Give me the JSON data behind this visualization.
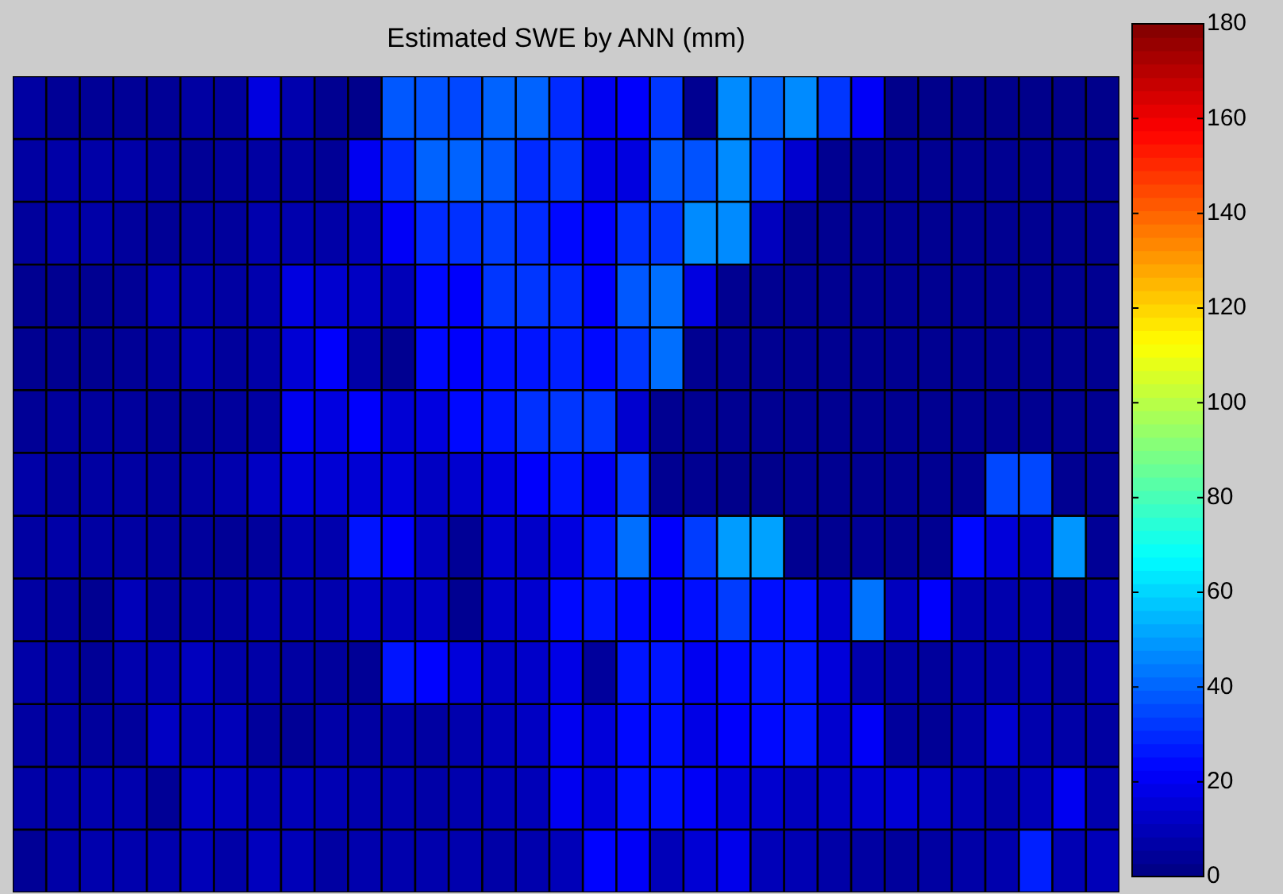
{
  "chart_data": {
    "type": "heatmap",
    "title": "Estimated SWE by ANN (mm)",
    "categories": [
      null,
      null,
      null,
      null,
      null,
      null,
      null,
      null,
      null,
      null,
      null,
      null,
      null,
      null,
      null,
      null,
      null,
      null,
      null,
      null,
      null,
      null,
      null,
      null,
      null,
      null,
      null,
      null,
      null,
      null,
      null,
      null,
      null
    ],
    "y_categories": [
      null,
      null,
      null,
      null,
      null,
      null,
      null,
      null,
      null,
      null,
      null,
      null,
      null
    ],
    "cells": [
      [
        6,
        4,
        4,
        4,
        4,
        6,
        5,
        17,
        8,
        3,
        2,
        38,
        37,
        35,
        40,
        40,
        30,
        20,
        22,
        32,
        3,
        47,
        40,
        47,
        32,
        21,
        2,
        2,
        2,
        2,
        2,
        2,
        2
      ],
      [
        6,
        7,
        7,
        7,
        5,
        4,
        5,
        6,
        6,
        4,
        20,
        30,
        40,
        40,
        38,
        30,
        32,
        18,
        17,
        38,
        37,
        47,
        32,
        14,
        3,
        3,
        3,
        3,
        3,
        3,
        3,
        3,
        3
      ],
      [
        5,
        7,
        7,
        5,
        4,
        5,
        5,
        8,
        8,
        7,
        10,
        21,
        30,
        31,
        33,
        30,
        24,
        22,
        31,
        32,
        47,
        47,
        11,
        3,
        3,
        3,
        3,
        3,
        3,
        3,
        3,
        3,
        3
      ],
      [
        3,
        3,
        3,
        4,
        8,
        7,
        6,
        8,
        17,
        14,
        12,
        10,
        24,
        22,
        32,
        32,
        30,
        22,
        38,
        42,
        17,
        3,
        3,
        3,
        3,
        3,
        3,
        3,
        3,
        3,
        3,
        3,
        3
      ],
      [
        3,
        3,
        3,
        4,
        5,
        8,
        5,
        7,
        15,
        22,
        7,
        3,
        24,
        22,
        25,
        26,
        28,
        24,
        32,
        42,
        3,
        3,
        3,
        3,
        3,
        3,
        3,
        3,
        3,
        3,
        3,
        3,
        3
      ],
      [
        4,
        5,
        5,
        5,
        4,
        4,
        5,
        6,
        20,
        17,
        22,
        15,
        17,
        24,
        26,
        31,
        32,
        32,
        14,
        3,
        3,
        3,
        3,
        3,
        3,
        3,
        3,
        3,
        3,
        3,
        3,
        3,
        3
      ],
      [
        7,
        5,
        6,
        6,
        5,
        6,
        8,
        12,
        16,
        15,
        15,
        16,
        12,
        14,
        17,
        22,
        26,
        20,
        32,
        3,
        3,
        2,
        2,
        3,
        3,
        3,
        3,
        3,
        3,
        35,
        35,
        3,
        3
      ],
      [
        6,
        7,
        6,
        6,
        5,
        5,
        4,
        5,
        9,
        8,
        26,
        22,
        11,
        4,
        14,
        13,
        17,
        26,
        42,
        22,
        33,
        50,
        51,
        3,
        3,
        4,
        3,
        3,
        24,
        16,
        11,
        49,
        4
      ],
      [
        6,
        5,
        3,
        10,
        5,
        6,
        6,
        8,
        8,
        8,
        12,
        11,
        12,
        3,
        13,
        14,
        24,
        26,
        24,
        22,
        25,
        33,
        25,
        25,
        14,
        43,
        11,
        22,
        8,
        8,
        8,
        4,
        8
      ],
      [
        7,
        6,
        4,
        8,
        8,
        11,
        7,
        7,
        6,
        5,
        4,
        26,
        23,
        16,
        12,
        13,
        18,
        5,
        26,
        26,
        20,
        24,
        26,
        26,
        16,
        8,
        6,
        5,
        7,
        7,
        8,
        5,
        8
      ],
      [
        6,
        6,
        5,
        5,
        12,
        9,
        10,
        5,
        4,
        7,
        6,
        7,
        6,
        8,
        10,
        12,
        20,
        16,
        24,
        25,
        18,
        22,
        24,
        26,
        14,
        21,
        5,
        4,
        7,
        14,
        8,
        7,
        6
      ],
      [
        7,
        7,
        8,
        8,
        4,
        12,
        11,
        9,
        10,
        9,
        8,
        8,
        7,
        8,
        9,
        10,
        20,
        16,
        25,
        25,
        21,
        16,
        14,
        11,
        12,
        14,
        15,
        12,
        9,
        7,
        10,
        20,
        8
      ],
      [
        4,
        7,
        8,
        8,
        8,
        10,
        7,
        11,
        10,
        6,
        8,
        8,
        8,
        8,
        7,
        8,
        10,
        23,
        21,
        10,
        15,
        19,
        10,
        9,
        7,
        6,
        5,
        6,
        7,
        8,
        28,
        9,
        10
      ]
    ],
    "clim": [
      0,
      180
    ],
    "cticks": [
      0,
      20,
      40,
      60,
      80,
      100,
      120,
      140,
      160,
      180
    ]
  }
}
